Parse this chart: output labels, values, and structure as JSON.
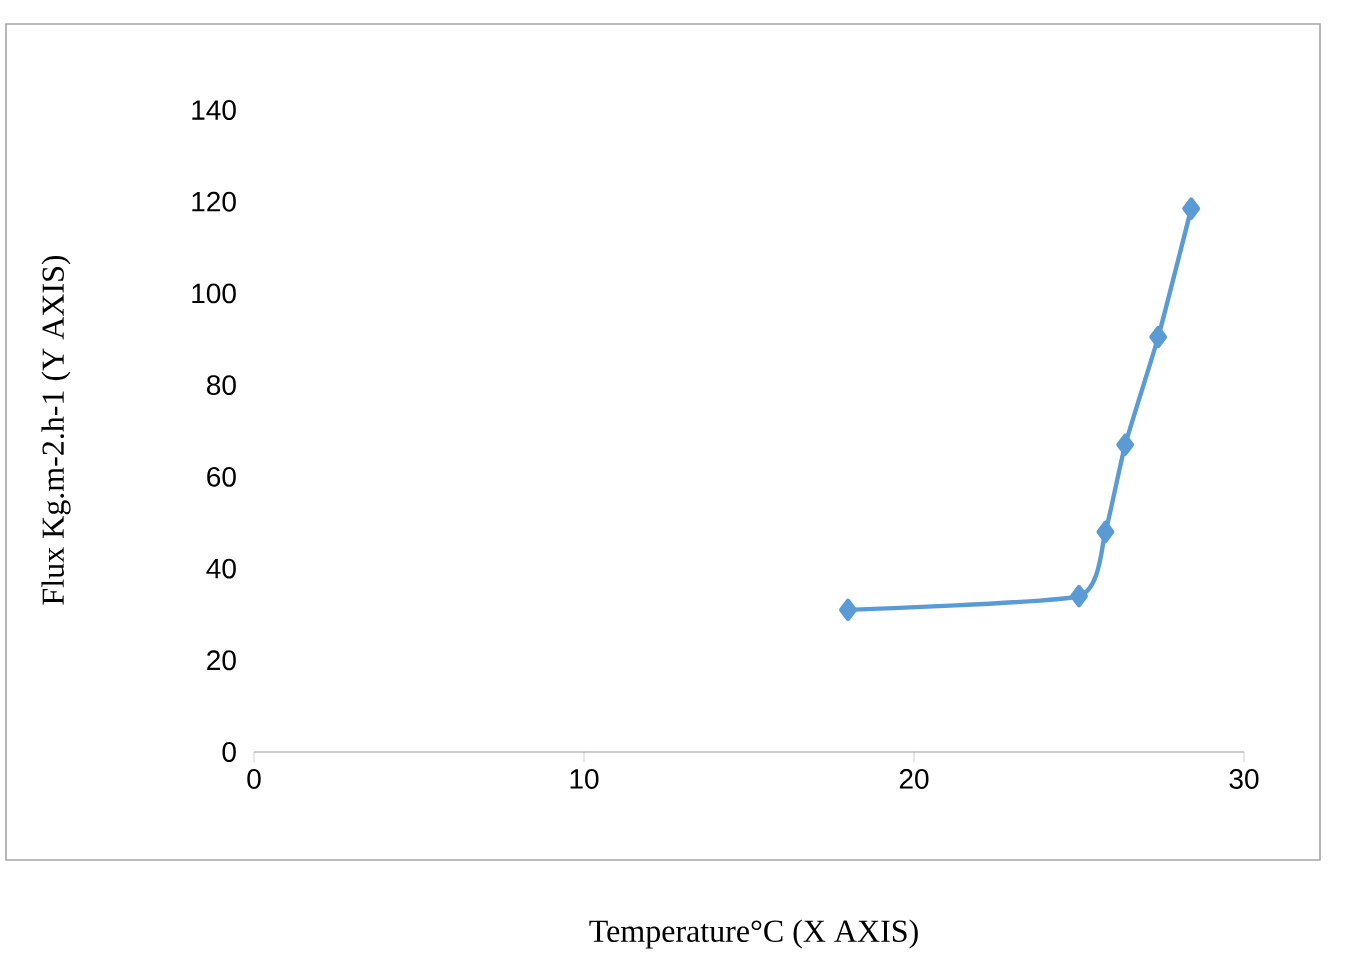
{
  "chart_data": {
    "type": "line",
    "xlabel": "Temperature°C (X  AXIS)",
    "ylabel": "Flux Kg.m-2.h-1 (Y AXIS)",
    "x": [
      18,
      25,
      25.8,
      26.4,
      27.4,
      28.4
    ],
    "series": [
      {
        "color": "#5b9bd5",
        "values": [
          31,
          34,
          48,
          67,
          90.5,
          118.5
        ]
      }
    ],
    "xlim": [
      0,
      30
    ],
    "xticks": [
      0,
      10,
      20,
      30
    ],
    "ylim": [
      0,
      140
    ],
    "yticks": [
      0,
      20,
      40,
      60,
      80,
      100,
      120,
      140
    ],
    "marker": "diamond",
    "line_style": "solid",
    "grid": false
  }
}
